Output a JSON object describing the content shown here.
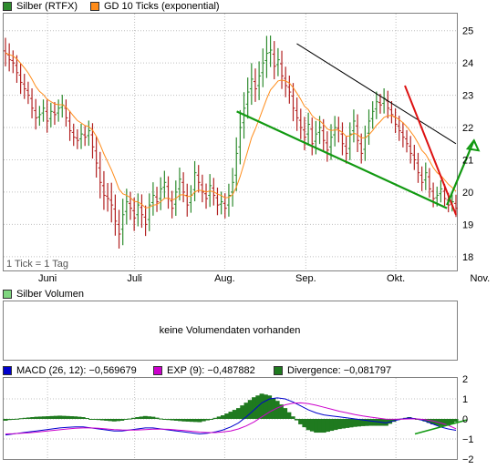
{
  "colors": {
    "up": "#2e8b2e",
    "down": "#b22222",
    "ema": "#ff8c1a",
    "macd": "#0000cc",
    "exp": "#cc00cc",
    "divergence": "#1f7a1f",
    "grid": "#c0c0c0",
    "panel_border": "#808080",
    "trend_red": "#dd1111",
    "trend_green": "#119911",
    "trend_black": "#000000"
  },
  "legend_main": [
    {
      "label": "Silber (RTFX)",
      "color": "#2e8b2e"
    },
    {
      "label": "GD 10 Ticks (exponential)",
      "color": "#ff8c1a"
    }
  ],
  "legend_volume": {
    "label": "Silber Volumen",
    "color": "#7fd67f"
  },
  "volume_message": "keine Volumendaten vorhanden",
  "tick_note": "1 Tick = 1 Tag",
  "legend_macd": [
    {
      "label": "MACD (26, 12): −0,569679",
      "color": "#0000cc"
    },
    {
      "label": "EXP (9): −0,487882",
      "color": "#cc00cc"
    },
    {
      "label": "Divergence: −0,081797",
      "color": "#1f7a1f"
    }
  ],
  "x_labels": [
    "Juni",
    "Juli",
    "Aug.",
    "Sep.",
    "Okt.",
    "Nov."
  ],
  "y_ticks_price": [
    "25",
    "24",
    "23",
    "22",
    "21",
    "20",
    "19",
    "18"
  ],
  "y_ticks_macd": [
    "2",
    "1",
    "0",
    "−1",
    "−2"
  ],
  "chart_data": [
    {
      "type": "bar",
      "title": "Silber (RTFX)",
      "xlabel": "",
      "ylabel": "",
      "x_range": [
        0,
        150
      ],
      "x_ticks": [
        {
          "label": "Juni",
          "x": 14
        },
        {
          "label": "Juli",
          "x": 43
        },
        {
          "label": "Aug.",
          "x": 73
        },
        {
          "label": "Sep.",
          "x": 100
        },
        {
          "label": "Okt.",
          "x": 130
        },
        {
          "label": "Nov.",
          "x": 158
        }
      ],
      "ylim": [
        17.6,
        25.5
      ],
      "y_ticks": [
        25,
        24,
        23,
        22,
        21,
        20,
        19,
        18
      ],
      "grid": true,
      "legend_position": "top-left",
      "series": [
        {
          "name": "Silber (RTFX)",
          "kind": "ohlc",
          "closes": [
            24.3,
            24.1,
            24.0,
            23.7,
            23.4,
            23.2,
            23.0,
            22.6,
            22.3,
            22.4,
            22.6,
            22.2,
            22.5,
            22.4,
            22.6,
            22.7,
            22.3,
            21.9,
            21.7,
            21.6,
            21.8,
            21.7,
            21.9,
            21.4,
            20.9,
            20.3,
            19.9,
            19.8,
            19.6,
            19.1,
            18.7,
            19.3,
            19.7,
            19.5,
            19.2,
            19.6,
            19.3,
            19.0,
            19.6,
            19.9,
            19.7,
            20.1,
            20.3,
            19.8,
            19.5,
            20.0,
            20.4,
            20.0,
            19.6,
            19.9,
            20.6,
            20.3,
            20.0,
            19.8,
            20.2,
            19.9,
            19.6,
            19.7,
            19.5,
            19.9,
            20.3,
            21.2,
            22.0,
            22.6,
            23.1,
            23.5,
            23.2,
            23.6,
            24.0,
            24.3,
            24.4,
            23.9,
            24.1,
            23.6,
            23.3,
            23.1,
            22.6,
            22.3,
            22.0,
            21.7,
            22.1,
            21.5,
            21.8,
            22.0,
            21.6,
            21.3,
            21.7,
            22.0,
            21.9,
            21.5,
            21.2,
            21.8,
            22.2,
            21.6,
            21.2,
            21.7,
            22.2,
            22.5,
            22.8,
            22.7,
            22.9,
            22.6,
            22.4,
            22.1,
            21.9,
            21.7,
            21.5,
            21.2,
            21.0,
            20.6,
            20.3,
            20.6,
            20.1,
            19.8,
            19.9,
            20.1,
            19.8,
            19.6,
            19.7,
            19.5
          ],
          "ranges": [
            0.9,
            0.8,
            0.7,
            0.7,
            0.8,
            0.7,
            0.6,
            0.7,
            0.8,
            0.6,
            0.6,
            0.8,
            0.6,
            0.7,
            0.6,
            0.7,
            0.6,
            0.7,
            0.6,
            0.6,
            0.7,
            0.6,
            0.7,
            0.8,
            1.0,
            1.1,
            1.0,
            0.9,
            1.2,
            1.0,
            1.0,
            1.1,
            0.9,
            0.8,
            0.9,
            0.8,
            0.9,
            0.8,
            0.8,
            0.9,
            0.7,
            0.8,
            0.8,
            0.7,
            0.7,
            0.8,
            0.8,
            0.7,
            0.8,
            0.7,
            0.8,
            0.7,
            0.7,
            0.7,
            0.8,
            0.7,
            0.7,
            0.7,
            0.7,
            0.8,
            1.0,
            1.1,
            1.2,
            1.1,
            1.0,
            1.1,
            0.9,
            1.0,
            1.0,
            1.2,
            1.0,
            0.9,
            0.8,
            0.9,
            0.8,
            0.8,
            0.9,
            0.9,
            0.8,
            0.9,
            0.8,
            0.8,
            0.9,
            0.8,
            0.8,
            0.8,
            0.9,
            0.8,
            0.8,
            0.8,
            0.7,
            0.8,
            0.8,
            0.8,
            0.7,
            0.8,
            0.8,
            0.7,
            0.7,
            0.6,
            0.7,
            0.7,
            0.6,
            0.6,
            0.7,
            0.7,
            0.6,
            0.7,
            0.7,
            0.7,
            0.6,
            0.7,
            0.6,
            0.6,
            0.6,
            0.6,
            0.5,
            0.5,
            0.5,
            0.6
          ]
        },
        {
          "name": "GD 10 Ticks (exponential)",
          "kind": "line"
        }
      ],
      "annotations": {
        "trendline_black": {
          "from": [
            97,
            24.6
          ],
          "to": [
            150,
            21.5
          ]
        },
        "trendline_green": {
          "from": [
            77,
            22.5
          ],
          "to": [
            147,
            19.5
          ]
        },
        "trendline_red": {
          "from": [
            133,
            23.3
          ],
          "to": [
            150,
            19.3
          ]
        },
        "arrow_green": {
          "from": [
            147,
            19.6
          ],
          "to": [
            156,
            21.6
          ]
        }
      }
    },
    {
      "type": "line",
      "title": "MACD",
      "ylim": [
        -2,
        2
      ],
      "y_ticks": [
        2,
        1,
        0,
        -1,
        -2
      ],
      "series": [
        {
          "name": "MACD (26, 12)",
          "values": [
            -0.8,
            -0.75,
            -0.7,
            -0.65,
            -0.6,
            -0.55,
            -0.5,
            -0.45,
            -0.42,
            -0.4,
            -0.4,
            -0.45,
            -0.5,
            -0.55,
            -0.6,
            -0.6,
            -0.55,
            -0.5,
            -0.45,
            -0.45,
            -0.5,
            -0.55,
            -0.6,
            -0.65,
            -0.7,
            -0.75,
            -0.72,
            -0.65,
            -0.55,
            -0.4,
            -0.2,
            0.1,
            0.45,
            0.8,
            1.0,
            1.05,
            1.0,
            0.85,
            0.65,
            0.45,
            0.3,
            0.2,
            0.15,
            0.1,
            0.05,
            0.0,
            -0.05,
            -0.1,
            -0.15,
            -0.2,
            -0.1,
            0.0,
            0.05,
            0.0,
            -0.1,
            -0.25,
            -0.4,
            -0.5,
            -0.57
          ]
        },
        {
          "name": "EXP (9)",
          "values": [
            -0.75,
            -0.74,
            -0.72,
            -0.69,
            -0.66,
            -0.62,
            -0.58,
            -0.54,
            -0.5,
            -0.47,
            -0.45,
            -0.45,
            -0.47,
            -0.5,
            -0.53,
            -0.55,
            -0.56,
            -0.55,
            -0.53,
            -0.51,
            -0.51,
            -0.52,
            -0.55,
            -0.58,
            -0.62,
            -0.66,
            -0.68,
            -0.68,
            -0.65,
            -0.6,
            -0.5,
            -0.35,
            -0.15,
            0.1,
            0.35,
            0.55,
            0.7,
            0.78,
            0.8,
            0.76,
            0.68,
            0.58,
            0.48,
            0.38,
            0.3,
            0.22,
            0.15,
            0.09,
            0.04,
            -0.01,
            -0.02,
            -0.01,
            0.0,
            0.0,
            -0.03,
            -0.1,
            -0.2,
            -0.32,
            -0.49
          ]
        },
        {
          "name": "Divergence",
          "kind": "bars"
        }
      ]
    }
  ]
}
